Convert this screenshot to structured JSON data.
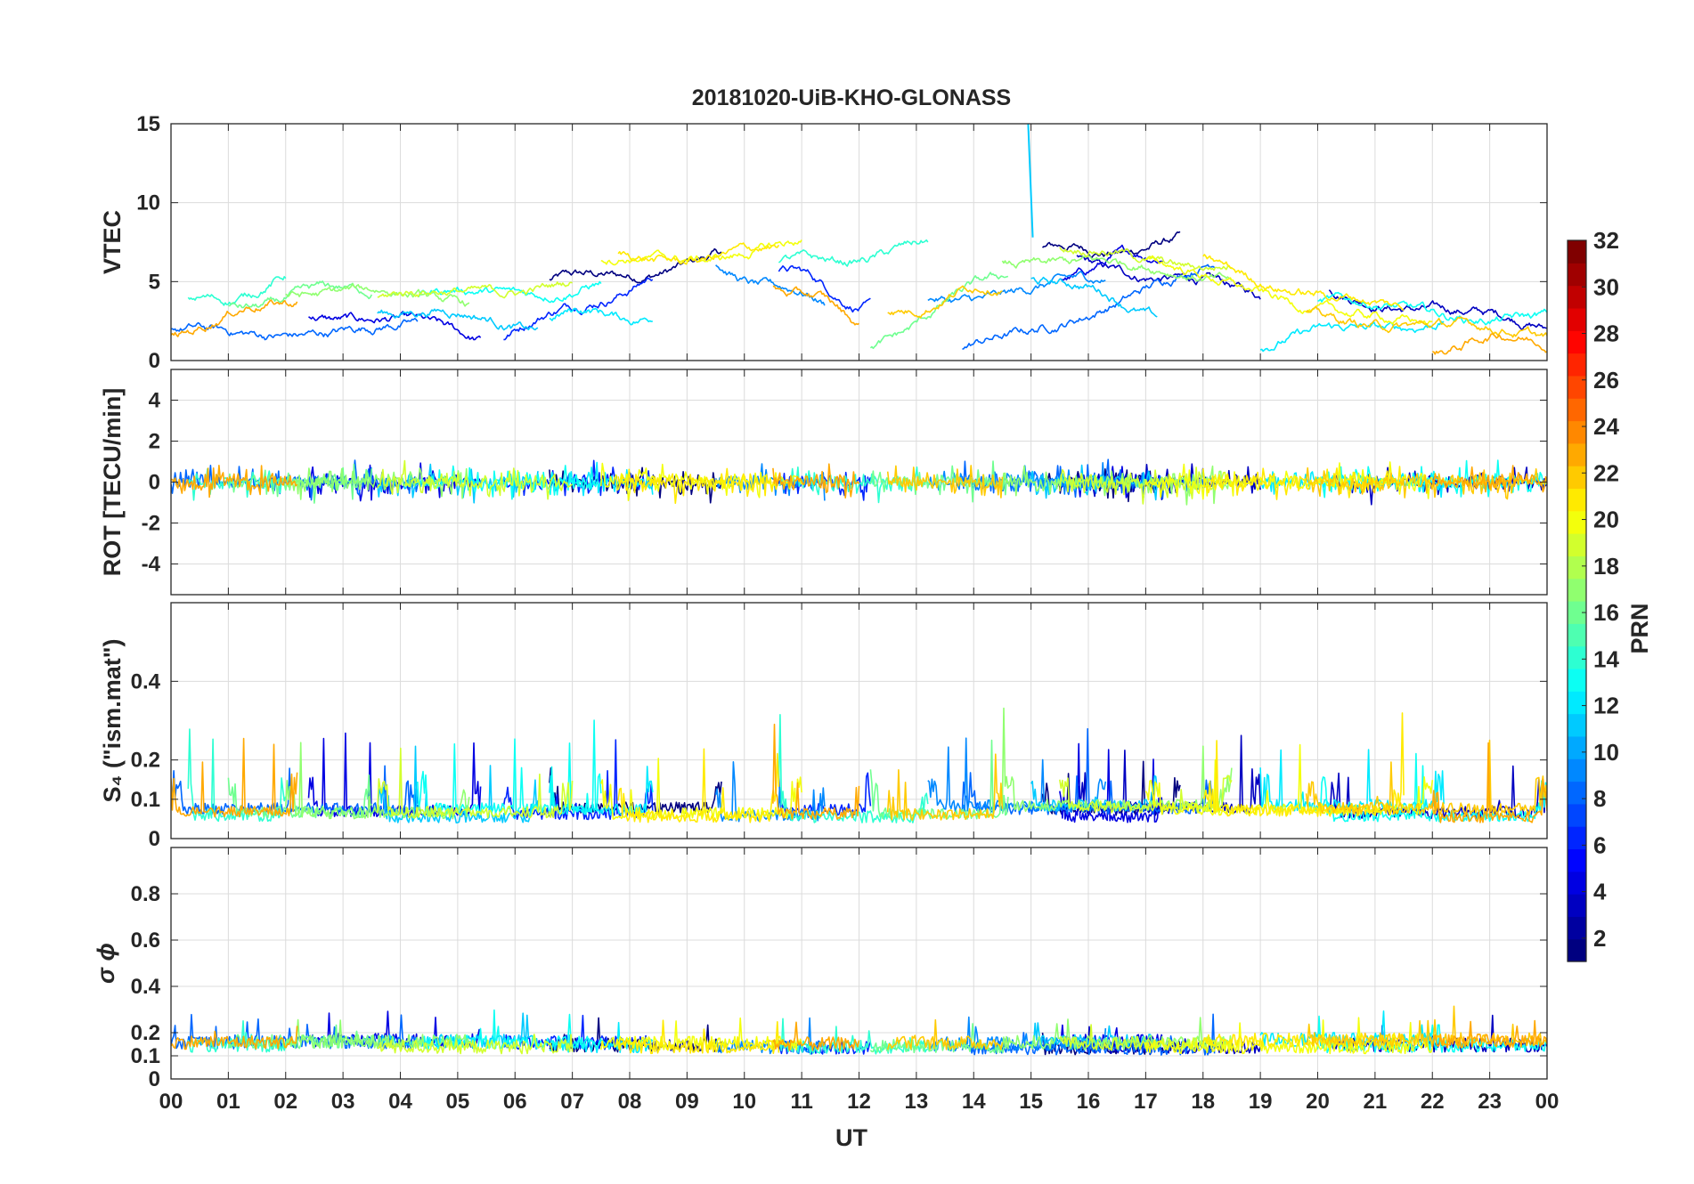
{
  "chart_data": {
    "type": "line",
    "title": "20181020-UiB-KHO-GLONASS",
    "xlabel": "UT",
    "x_range": [
      0,
      24
    ],
    "x_tick_labels": [
      "00",
      "01",
      "02",
      "03",
      "04",
      "05",
      "06",
      "07",
      "08",
      "09",
      "10",
      "11",
      "12",
      "13",
      "14",
      "15",
      "16",
      "17",
      "18",
      "19",
      "20",
      "21",
      "22",
      "23",
      "00"
    ],
    "panels": [
      {
        "id": "vtec",
        "ylabel": "VTEC",
        "ylim": [
          0,
          15
        ],
        "y_ticks": [
          0,
          5,
          10,
          15
        ],
        "y_tick_labels": [
          "0",
          "5",
          "10",
          "15"
        ],
        "kind": "vtec"
      },
      {
        "id": "rot",
        "ylabel": "ROT [TECU/min]",
        "ylim": [
          -5.5,
          5.5
        ],
        "y_ticks": [
          -4,
          -2,
          0,
          2,
          4
        ],
        "y_tick_labels": [
          "-4",
          "-2",
          "0",
          "2",
          "4"
        ],
        "kind": "rot"
      },
      {
        "id": "s4",
        "ylabel": "S₄ (\"ism.mat\")",
        "ylim": [
          0,
          0.6
        ],
        "y_ticks": [
          0,
          0.1,
          0.2,
          0.4
        ],
        "y_tick_labels": [
          "0",
          "0.1",
          "0.2",
          "0.4"
        ],
        "kind": "s4"
      },
      {
        "id": "sigma",
        "ylabel": "σ ϕ",
        "ylim": [
          0,
          1
        ],
        "y_ticks": [
          0,
          0.1,
          0.2,
          0.4,
          0.6,
          0.8
        ],
        "y_tick_labels": [
          "0",
          "0.1",
          "0.2",
          "0.4",
          "0.6",
          "0.8"
        ],
        "kind": "sigma"
      }
    ],
    "colorbar": {
      "label": "PRN",
      "range": [
        1,
        32
      ],
      "tick_labels": [
        "2",
        "4",
        "6",
        "8",
        "10",
        "12",
        "14",
        "16",
        "18",
        "20",
        "22",
        "24",
        "26",
        "28",
        "30",
        "32"
      ],
      "colormap": "jet"
    },
    "series": [
      {
        "prn": 1,
        "segments": [
          [
            6.6,
            9.6,
            4.8,
            6.5
          ],
          [
            15.2,
            17.6,
            6.8,
            7.5
          ]
        ]
      },
      {
        "prn": 3,
        "segments": [
          [
            15.8,
            19.0,
            6.5,
            4.0
          ],
          [
            20.2,
            24.0,
            4.5,
            2.0
          ]
        ]
      },
      {
        "prn": 4,
        "segments": [
          [
            2.4,
            5.4,
            3.2,
            1.5
          ],
          [
            15.5,
            17.3,
            5.5,
            6.8
          ]
        ]
      },
      {
        "prn": 6,
        "segments": [
          [
            5.8,
            8.4,
            1.5,
            5.5
          ],
          [
            10.6,
            12.2,
            5.8,
            3.5
          ]
        ]
      },
      {
        "prn": 8,
        "segments": [
          [
            0.0,
            4.3,
            1.8,
            2.0
          ],
          [
            13.8,
            18.2,
            0.5,
            6.0
          ]
        ]
      },
      {
        "prn": 9,
        "segments": [
          [
            9.5,
            11.4,
            6.0,
            3.5
          ],
          [
            13.2,
            16.3,
            3.8,
            5.0
          ]
        ]
      },
      {
        "prn": 11,
        "segments": [
          [
            3.6,
            6.4,
            3.4,
            2.2
          ],
          [
            15.0,
            17.2,
            5.5,
            3.0
          ]
        ]
      },
      {
        "prn": 12,
        "segments": [
          [
            6.6,
            8.4,
            2.8,
            3.0
          ],
          [
            19.0,
            22.2,
            1.0,
            2.7
          ]
        ]
      },
      {
        "prn": 13,
        "segments": [
          [
            4.3,
            7.5,
            4.0,
            4.8
          ],
          [
            20.0,
            24.0,
            3.5,
            2.7
          ]
        ]
      },
      {
        "prn": 14,
        "segments": [
          [
            0.3,
            2.0,
            3.5,
            5.0
          ],
          [
            10.6,
            13.2,
            6.0,
            7.2
          ]
        ]
      },
      {
        "prn": 16,
        "segments": [
          [
            1.0,
            3.5,
            3.5,
            4.5
          ],
          [
            12.2,
            14.6,
            1.0,
            5.5
          ]
        ]
      },
      {
        "prn": 17,
        "segments": [
          [
            2.0,
            5.2,
            4.5,
            3.8
          ],
          [
            14.5,
            18.5,
            6.5,
            5.3
          ]
        ]
      },
      {
        "prn": 19,
        "segments": [
          [
            3.6,
            7.0,
            3.8,
            5.0
          ],
          [
            15.5,
            18.5,
            7.0,
            6.0
          ]
        ]
      },
      {
        "prn": 20,
        "segments": [
          [
            7.5,
            11.0,
            6.1,
            7.3
          ],
          [
            17.0,
            22.0,
            6.0,
            2.0
          ]
        ]
      },
      {
        "prn": 21,
        "segments": [
          [
            7.8,
            10.6,
            6.5,
            6.8
          ],
          [
            18.0,
            21.5,
            6.2,
            3.0
          ]
        ]
      },
      {
        "prn": 22,
        "segments": [
          [
            12.5,
            14.5,
            3.2,
            4.8
          ],
          [
            19.8,
            24.0,
            3.0,
            1.4
          ]
        ]
      },
      {
        "prn": 23,
        "segments": [
          [
            0.0,
            2.2,
            1.8,
            4.0
          ],
          [
            10.5,
            12.0,
            5.0,
            2.5
          ],
          [
            22.0,
            24.0,
            1.0,
            1.5
          ]
        ]
      }
    ],
    "annotations": [
      {
        "panel": "vtec",
        "note": "spike",
        "x": 14.95,
        "y_start": 15,
        "y_end": 7.8,
        "prn": 11
      }
    ]
  }
}
